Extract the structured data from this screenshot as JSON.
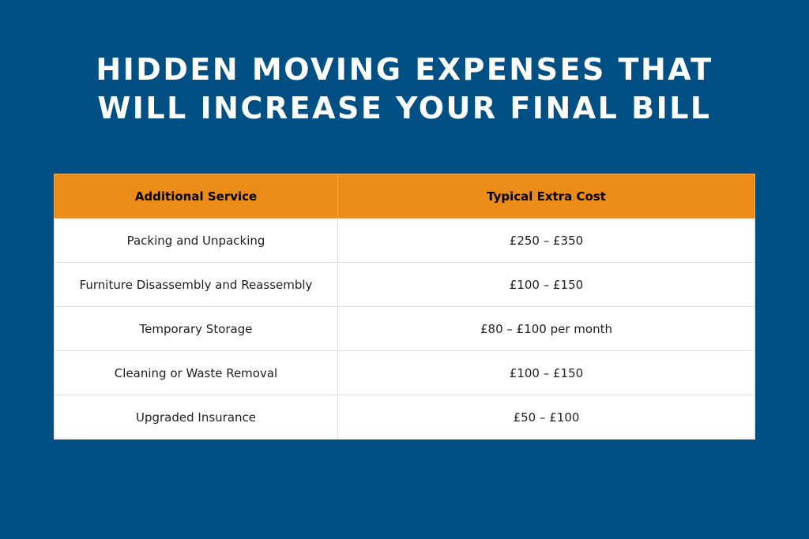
{
  "title": {
    "line1": "HIDDEN MOVING EXPENSES THAT",
    "line2": "WILL INCREASE YOUR FINAL BILL"
  },
  "colors": {
    "background": "#004f85",
    "header": "#ea8c17",
    "title_text": "#ffffff"
  },
  "table": {
    "headers": [
      "Additional Service",
      "Typical Extra Cost"
    ],
    "rows": [
      [
        "Packing and Unpacking",
        "£250 – £350"
      ],
      [
        "Furniture Disassembly and Reassembly",
        "£100 – £150"
      ],
      [
        "Temporary Storage",
        "£80 – £100 per month"
      ],
      [
        "Cleaning or Waste Removal",
        "£100 – £150"
      ],
      [
        "Upgraded Insurance",
        "£50 – £100"
      ]
    ]
  }
}
